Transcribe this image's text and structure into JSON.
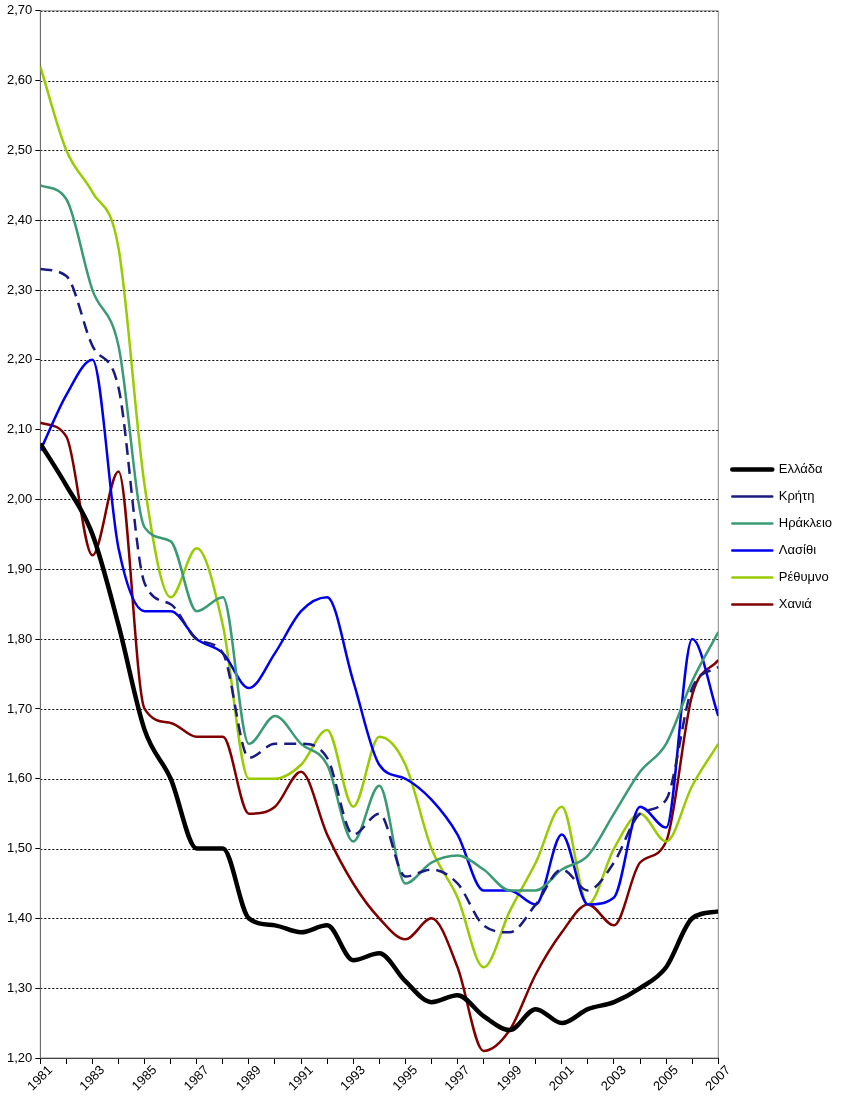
{
  "chart_data": {
    "type": "line",
    "x": [
      1981,
      1982,
      1983,
      1984,
      1985,
      1986,
      1987,
      1988,
      1989,
      1990,
      1991,
      1992,
      1993,
      1994,
      1995,
      1996,
      1997,
      1998,
      1999,
      2000,
      2001,
      2002,
      2003,
      2004,
      2005,
      2006,
      2007
    ],
    "series": [
      {
        "name": "Ελλάδα",
        "color": "#000000",
        "values": [
          2.08,
          2.02,
          1.95,
          1.82,
          1.67,
          1.6,
          1.5,
          1.5,
          1.4,
          1.39,
          1.38,
          1.39,
          1.34,
          1.35,
          1.31,
          1.28,
          1.29,
          1.26,
          1.24,
          1.27,
          1.25,
          1.27,
          1.28,
          1.3,
          1.33,
          1.4,
          1.41
        ]
      },
      {
        "name": "Κρήτη",
        "color": "#1a1a80",
        "line_style": "dashed",
        "values": [
          2.33,
          2.32,
          2.22,
          2.16,
          1.88,
          1.85,
          1.8,
          1.78,
          1.63,
          1.65,
          1.65,
          1.63,
          1.52,
          1.55,
          1.46,
          1.47,
          1.45,
          1.39,
          1.38,
          1.42,
          1.47,
          1.44,
          1.48,
          1.55,
          1.57,
          1.73,
          1.76
        ]
      },
      {
        "name": "Ηράκλειο",
        "color": "#3a9a74",
        "values": [
          2.45,
          2.43,
          2.3,
          2.22,
          1.96,
          1.94,
          1.84,
          1.86,
          1.65,
          1.69,
          1.65,
          1.62,
          1.51,
          1.59,
          1.45,
          1.48,
          1.49,
          1.47,
          1.44,
          1.44,
          1.47,
          1.49,
          1.55,
          1.61,
          1.65,
          1.74,
          1.81
        ]
      },
      {
        "name": "Λασίθι",
        "color": "#0000ee",
        "values": [
          2.07,
          2.15,
          2.2,
          1.93,
          1.84,
          1.84,
          1.8,
          1.78,
          1.73,
          1.78,
          1.84,
          1.86,
          1.74,
          1.62,
          1.6,
          1.57,
          1.52,
          1.44,
          1.44,
          1.42,
          1.52,
          1.42,
          1.43,
          1.56,
          1.53,
          1.8,
          1.69
        ]
      },
      {
        "name": "Ρέθυμνο",
        "color": "#99cc00",
        "values": [
          2.62,
          2.5,
          2.44,
          2.36,
          2.02,
          1.86,
          1.93,
          1.82,
          1.6,
          1.6,
          1.62,
          1.67,
          1.56,
          1.66,
          1.62,
          1.5,
          1.43,
          1.33,
          1.41,
          1.48,
          1.56,
          1.42,
          1.5,
          1.55,
          1.51,
          1.59,
          1.65
        ]
      },
      {
        "name": "Χανιά",
        "color": "#800000",
        "values": [
          2.11,
          2.09,
          1.92,
          2.04,
          1.7,
          1.68,
          1.66,
          1.66,
          1.55,
          1.56,
          1.61,
          1.52,
          1.45,
          1.4,
          1.37,
          1.4,
          1.33,
          1.21,
          1.24,
          1.32,
          1.38,
          1.42,
          1.39,
          1.48,
          1.51,
          1.72,
          1.77
        ]
      }
    ],
    "xlim": [
      1981,
      2007
    ],
    "xticks": [
      1981,
      {
        "value": 1982,
        "label": null
      },
      1983,
      {
        "value": 1984,
        "label": null
      },
      1985,
      {
        "value": 1986,
        "label": null
      },
      1987,
      {
        "value": 1988,
        "label": null
      },
      1989,
      {
        "value": 1990,
        "label": null
      },
      1991,
      {
        "value": 1992,
        "label": null
      },
      1993,
      {
        "value": 1994,
        "label": null
      },
      1995,
      {
        "value": 1996,
        "label": null
      },
      1997,
      {
        "value": 1998,
        "label": null
      },
      1999,
      {
        "value": 2000,
        "label": null
      },
      2001,
      {
        "value": 2002,
        "label": null
      },
      2003,
      {
        "value": 2004,
        "label": null
      },
      2005,
      {
        "value": 2006,
        "label": null
      },
      2007
    ],
    "ylim": [
      1.2,
      2.7
    ],
    "yticks": [
      {
        "value": 1.2,
        "label": "1,20"
      },
      {
        "value": 1.3,
        "label": "1,30"
      },
      {
        "value": 1.4,
        "label": "1,40"
      },
      {
        "value": 1.5,
        "label": "1,50"
      },
      {
        "value": 1.6,
        "label": "1,60"
      },
      {
        "value": 1.7,
        "label": "1,70"
      },
      {
        "value": 1.8,
        "label": "1,80"
      },
      {
        "value": 1.9,
        "label": "1,90"
      },
      {
        "value": 2.0,
        "label": "2,00"
      },
      {
        "value": 2.1,
        "label": "2,10"
      },
      {
        "value": 2.2,
        "label": "2,20"
      },
      {
        "value": 2.3,
        "label": "2,30"
      },
      {
        "value": 2.4,
        "label": "2,40"
      },
      {
        "value": 2.5,
        "label": "2,50"
      },
      {
        "value": 2.6,
        "label": "2,60"
      },
      {
        "value": 2.7,
        "label": "2,70"
      }
    ],
    "grid": "y",
    "legend": "right",
    "marker": "none"
  }
}
